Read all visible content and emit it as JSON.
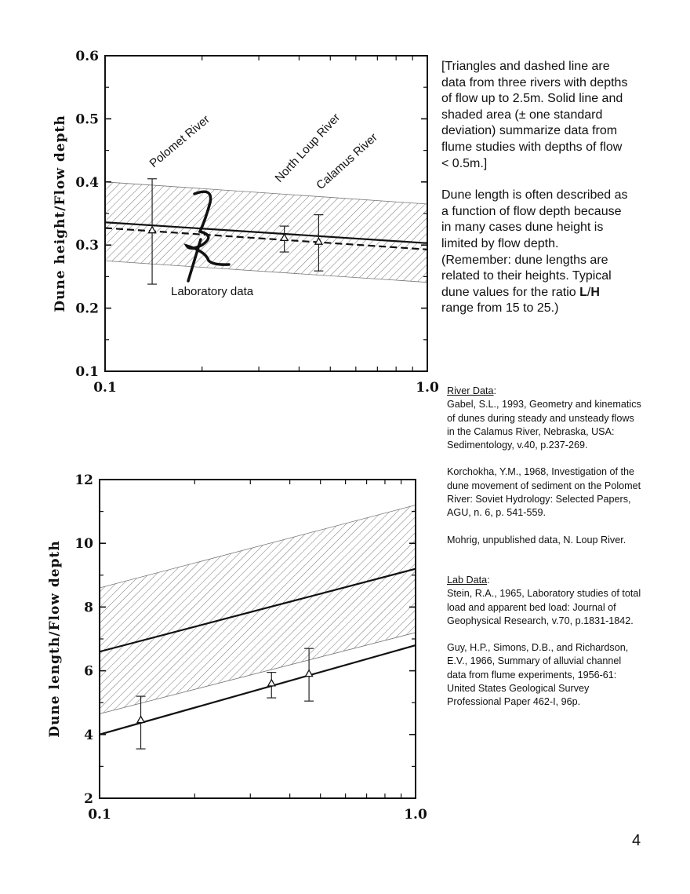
{
  "chart_data": [
    {
      "type": "line",
      "x_scale": "log",
      "xlim": [
        0.1,
        1.0
      ],
      "ylim": [
        0.1,
        0.6
      ],
      "xticks": [
        "0.1",
        "1.0"
      ],
      "yticks": [
        "0.1",
        "0.2",
        "0.3",
        "0.4",
        "0.5",
        "0.6"
      ],
      "ylabel": "Dune height/Flow depth",
      "xlabel": "",
      "series": [
        {
          "style": "solid",
          "x": [
            0.1,
            1.0
          ],
          "y": [
            0.336,
            0.303
          ]
        },
        {
          "style": "dashed",
          "x": [
            0.1,
            1.0
          ],
          "y": [
            0.327,
            0.293
          ]
        },
        {
          "style": "band-upper",
          "x": [
            0.1,
            1.0
          ],
          "y": [
            0.4,
            0.365
          ]
        },
        {
          "style": "band-lower",
          "x": [
            0.1,
            1.0
          ],
          "y": [
            0.275,
            0.241
          ]
        }
      ],
      "points": [
        {
          "x": 0.14,
          "y": 0.323,
          "err_low": 0.238,
          "err_high": 0.405,
          "label": "Polomet River"
        },
        {
          "x": 0.36,
          "y": 0.311,
          "err_low": 0.289,
          "err_high": 0.33,
          "label": "North Loup River"
        },
        {
          "x": 0.46,
          "y": 0.305,
          "err_low": 0.259,
          "err_high": 0.348,
          "label": "Calamus River"
        }
      ],
      "annotations": [
        "Polomet River",
        "North Loup River",
        "Calamus River",
        "Laboratory data"
      ]
    },
    {
      "type": "line",
      "x_scale": "log",
      "xlim": [
        0.1,
        1.0
      ],
      "ylim": [
        2,
        12
      ],
      "xticks": [
        "0.1",
        "1.0"
      ],
      "yticks": [
        "2",
        "4",
        "6",
        "8",
        "10",
        "12"
      ],
      "ylabel": "Dune length/Flow depth",
      "xlabel": "",
      "series": [
        {
          "style": "solid",
          "x": [
            0.1,
            1.0
          ],
          "y": [
            6.6,
            9.2
          ]
        },
        {
          "style": "solid",
          "x": [
            0.1,
            1.0
          ],
          "y": [
            4.0,
            6.8
          ]
        },
        {
          "style": "band-upper",
          "x": [
            0.1,
            1.0
          ],
          "y": [
            8.6,
            11.2
          ]
        },
        {
          "style": "band-lower",
          "x": [
            0.1,
            1.0
          ],
          "y": [
            4.65,
            7.2
          ]
        }
      ],
      "points": [
        {
          "x": 0.135,
          "y": 4.45,
          "err_low": 3.55,
          "err_high": 5.2
        },
        {
          "x": 0.35,
          "y": 5.6,
          "err_low": 5.15,
          "err_high": 5.95
        },
        {
          "x": 0.46,
          "y": 5.9,
          "err_low": 5.05,
          "err_high": 6.7
        }
      ]
    }
  ],
  "description": {
    "p1": "[Triangles and dashed line are data from three rivers with depths of flow up to 2.5m. Solid line and shaded area (± one standard deviation) summarize data from flume studies with depths of flow < 0.5m.]",
    "p2_a": "Dune length is often described as a function of flow depth because in many cases dune height is limited by flow depth. (Remember: dune lengths are related to their heights. Typical dune values for the ratio ",
    "p2_L": "L",
    "p2_slash": "/",
    "p2_H": "H",
    "p2_b": " range from 15 to 25.)"
  },
  "references": {
    "river_heading": "River Data",
    "river_refs": [
      "Gabel, S.L., 1993, Geometry and kinematics of dunes during steady and unsteady flows in the Calamus River, Nebraska, USA: Sedimentology, v.40, p.237-269.",
      "Korchokha, Y.M., 1968, Investigation of the dune movement of sediment on the Polomet River: Soviet Hydrology: Selected Papers, AGU, n. 6, p. 541-559.",
      "Mohrig, unpublished data, N. Loup River."
    ],
    "lab_heading": "Lab Data",
    "lab_refs": [
      "Stein, R.A., 1965, Laboratory studies of total load and apparent bed load: Journal of Geophysical Research, v.70, p.1831-1842.",
      "Guy, H.P., Simons, D.B., and Richardson, E.V., 1966, Summary of alluvial channel data from flume experiments, 1956-61: United States Geological Survey Professional Paper 462-I, 96p."
    ]
  },
  "page_number": "4"
}
